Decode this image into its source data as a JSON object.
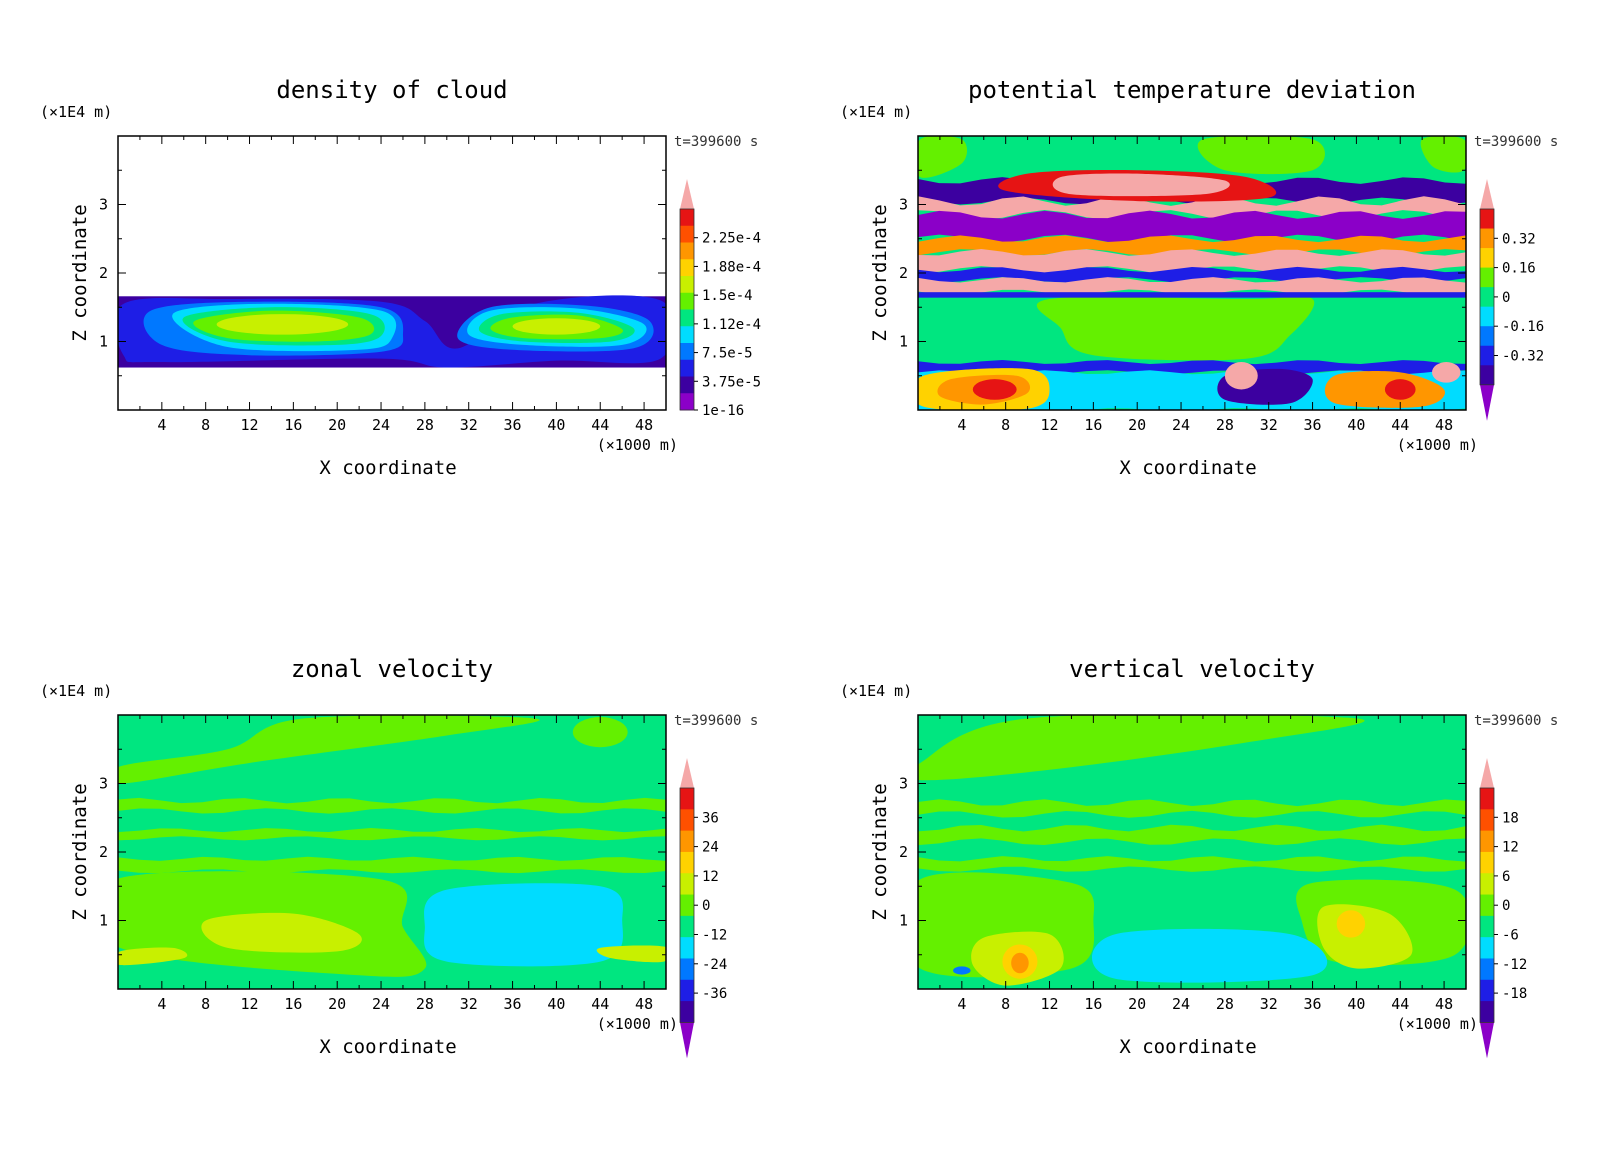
{
  "chart_data": [
    {
      "type": "heatmap",
      "title": "density of cloud",
      "xlabel": "X coordinate",
      "ylabel": "Z coordinate",
      "x_unit": "(×1000 m)",
      "y_unit": "(×1E4 m)",
      "time_label": "t=399600 s",
      "x_ticks": [
        "4",
        "8",
        "12",
        "16",
        "20",
        "24",
        "28",
        "32",
        "36",
        "40",
        "44",
        "48"
      ],
      "y_ticks": [
        "1",
        "2",
        "3"
      ],
      "xlim": [
        0,
        50
      ],
      "ylim": [
        0,
        4
      ],
      "colorbar_labels": [
        "2.25e-4",
        "1.88e-4",
        "1.5e-4",
        "1.12e-4",
        "7.5e-5",
        "3.75e-5",
        "1e-16"
      ],
      "field": "cloud",
      "background": "#ffffff"
    },
    {
      "type": "heatmap",
      "title": "potential temperature deviation",
      "xlabel": "X coordinate",
      "ylabel": "Z coordinate",
      "x_unit": "(×1000 m)",
      "y_unit": "(×1E4 m)",
      "time_label": "t=399600 s",
      "x_ticks": [
        "4",
        "8",
        "12",
        "16",
        "20",
        "24",
        "28",
        "32",
        "36",
        "40",
        "44",
        "48"
      ],
      "y_ticks": [
        "1",
        "2",
        "3"
      ],
      "xlim": [
        0,
        50
      ],
      "ylim": [
        0,
        4
      ],
      "colorbar_labels": [
        "0.32",
        "0.16",
        "0",
        "-0.16",
        "-0.32"
      ],
      "field": "theta",
      "background": "#00e680"
    },
    {
      "type": "heatmap",
      "title": "zonal velocity",
      "xlabel": "X coordinate",
      "ylabel": "Z coordinate",
      "x_unit": "(×1000 m)",
      "y_unit": "(×1E4 m)",
      "time_label": "t=399600 s",
      "x_ticks": [
        "4",
        "8",
        "12",
        "16",
        "20",
        "24",
        "28",
        "32",
        "36",
        "40",
        "44",
        "48"
      ],
      "y_ticks": [
        "1",
        "2",
        "3"
      ],
      "xlim": [
        0,
        50
      ],
      "ylim": [
        0,
        4
      ],
      "colorbar_labels": [
        "36",
        "24",
        "12",
        "0",
        "-12",
        "-24",
        "-36"
      ],
      "field": "u",
      "background": "#00e680"
    },
    {
      "type": "heatmap",
      "title": "vertical velocity",
      "xlabel": "X coordinate",
      "ylabel": "Z coordinate",
      "x_unit": "(×1000 m)",
      "y_unit": "(×1E4 m)",
      "time_label": "t=399600 s",
      "x_ticks": [
        "4",
        "8",
        "12",
        "16",
        "20",
        "24",
        "28",
        "32",
        "36",
        "40",
        "44",
        "48"
      ],
      "y_ticks": [
        "1",
        "2",
        "3"
      ],
      "xlim": [
        0,
        50
      ],
      "ylim": [
        0,
        4
      ],
      "colorbar_labels": [
        "18",
        "12",
        "6",
        "0",
        "-6",
        "-12",
        "-18"
      ],
      "field": "w",
      "background": "#00e680"
    }
  ],
  "colors": {
    "palette": [
      "#8b00c8",
      "#3c00a0",
      "#1e1ee6",
      "#0078ff",
      "#00dcff",
      "#00e680",
      "#64f000",
      "#c8f000",
      "#ffd200",
      "#ff9600",
      "#ff5000",
      "#e61414",
      "#f5a8a8"
    ]
  }
}
